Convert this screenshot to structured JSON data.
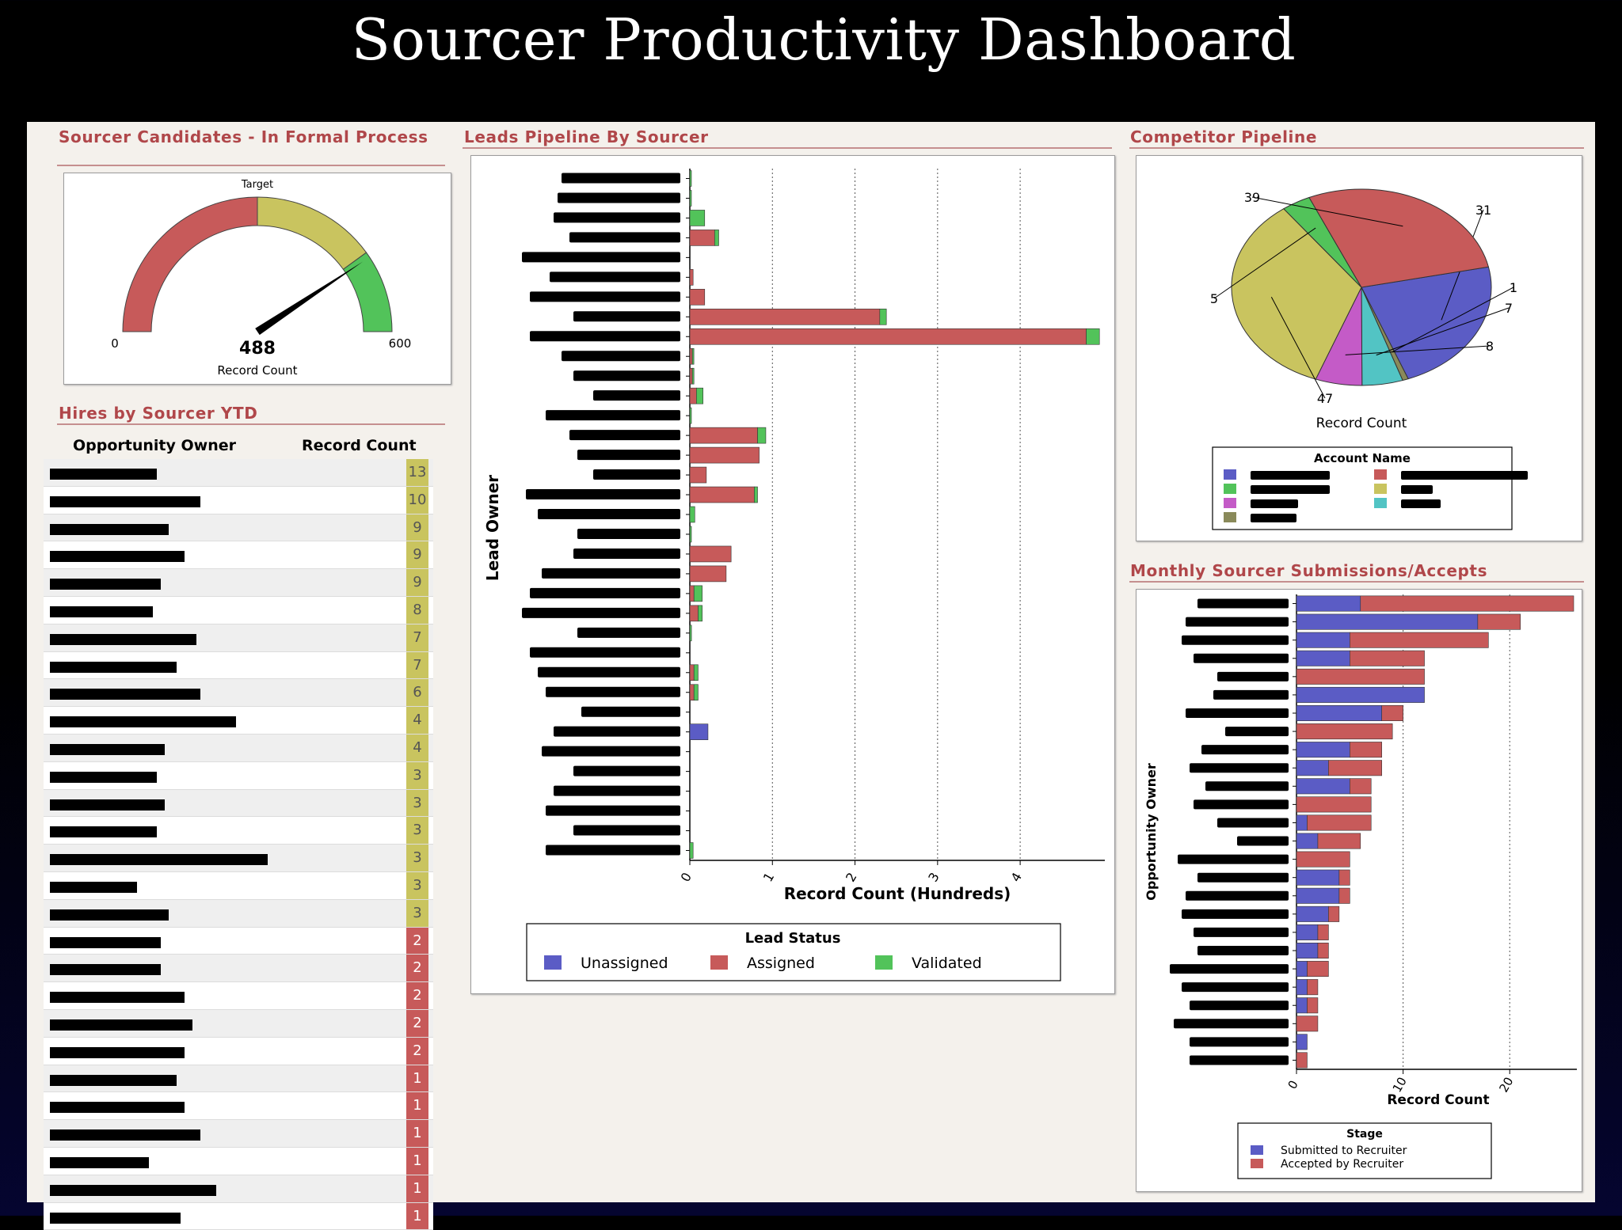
{
  "page": {
    "title": "Sourcer Productivity Dashboard"
  },
  "colors": {
    "unassigned": "#5b5cc5",
    "assigned": "#c75a5a",
    "validated": "#52c35a",
    "gauge_red": "#c75a5a",
    "gauge_yellow": "#c9c45f",
    "gauge_green": "#52c35a",
    "section_title": "#b0474a"
  },
  "gauge": {
    "section_title": "Sourcer Candidates - In Formal Process",
    "label_top": "Target",
    "min_label": "0",
    "max_label": "600",
    "value_label": "488",
    "axis_label": "Record Count",
    "value": 488,
    "min": 0,
    "max": 600
  },
  "hires": {
    "section_title": "Hires by Sourcer YTD",
    "col_owner": "Opportunity Owner",
    "col_count": "Record Count",
    "counts": [
      "13",
      "10",
      "9",
      "9",
      "9",
      "8",
      "7",
      "7",
      "6",
      "4",
      "4",
      "3",
      "3",
      "3",
      "3",
      "3",
      "3",
      "2",
      "2",
      "2",
      "2",
      "2",
      "1",
      "1",
      "1",
      "1",
      "1",
      "1"
    ]
  },
  "leads": {
    "section_title": "Leads Pipeline By Sourcer",
    "legend_title": "Lead Status"
  },
  "competitor": {
    "section_title": "Competitor Pipeline",
    "legend_title": "Account Name"
  },
  "monthly": {
    "section_title": "Monthly Sourcer Submissions/Accepts",
    "legend_title": "Stage"
  },
  "chart_data": [
    {
      "type": "bar",
      "orientation": "horizontal",
      "stacked": true,
      "title": "Leads Pipeline By Sourcer",
      "xlabel": "Record Count (Hundreds)",
      "ylabel": "Lead Owner",
      "xlim": [
        0,
        5
      ],
      "x_ticks": [
        "0",
        "1",
        "2",
        "3",
        "4"
      ],
      "grid": true,
      "legend_title": "Lead Status",
      "legend_position": "bottom",
      "series": [
        {
          "name": "Unassigned",
          "values": [
            0,
            0,
            0,
            0,
            0,
            0,
            0,
            0,
            0,
            0,
            0,
            0,
            0,
            0,
            0,
            0,
            0,
            0,
            0,
            0,
            0,
            0,
            0,
            0,
            0,
            0,
            0,
            0,
            0.22,
            0,
            0,
            0,
            0,
            0,
            0
          ]
        },
        {
          "name": "Assigned",
          "values": [
            0,
            0,
            0,
            0.3,
            0,
            0.04,
            0.18,
            2.3,
            4.8,
            0.03,
            0.03,
            0.08,
            0,
            0.82,
            0.84,
            0.2,
            0.78,
            0,
            0,
            0.5,
            0.44,
            0.05,
            0.1,
            0,
            0,
            0.05,
            0.05,
            0,
            0,
            0,
            0,
            0,
            0,
            0,
            0
          ]
        },
        {
          "name": "Validated",
          "values": [
            0.01,
            0.01,
            0.18,
            0.05,
            0,
            0,
            0,
            0.08,
            0.16,
            0.01,
            0.02,
            0.08,
            0.01,
            0.1,
            0,
            0,
            0.04,
            0.06,
            0.01,
            0,
            0,
            0.1,
            0.05,
            0.02,
            0,
            0.05,
            0.05,
            0,
            0,
            0,
            0,
            0,
            0,
            0,
            0.04
          ]
        }
      ]
    },
    {
      "type": "pie",
      "title": "Competitor Pipeline",
      "xlabel": "Record Count",
      "legend_title": "Account Name",
      "legend_position": "bottom",
      "values": [
        31,
        1,
        7,
        8,
        47,
        5,
        39
      ],
      "labels": [
        "31",
        "1",
        "7",
        "8",
        "47",
        "5",
        "39"
      ],
      "colors": [
        "#5b5cc5",
        "#8a8a5a",
        "#52c4c4",
        "#c45bc7",
        "#c9c45f",
        "#52c35a",
        "#c75a5a"
      ]
    },
    {
      "type": "bar",
      "orientation": "horizontal",
      "stacked": true,
      "title": "Monthly Sourcer Submissions/Accepts",
      "xlabel": "Record Count",
      "ylabel": "Opportunity Owner",
      "xlim": [
        0,
        26
      ],
      "x_ticks": [
        "0",
        "10",
        "20"
      ],
      "grid": true,
      "legend_title": "Stage",
      "legend_position": "bottom",
      "series": [
        {
          "name": "Submitted to Recruiter",
          "values": [
            6,
            17,
            5,
            5,
            0,
            12,
            8,
            0,
            5,
            3,
            5,
            0,
            1,
            2,
            0,
            4,
            4,
            3,
            2,
            2,
            1,
            1,
            1,
            0,
            1,
            0
          ]
        },
        {
          "name": "Accepted by Recruiter",
          "values": [
            20,
            4,
            13,
            7,
            12,
            0,
            2,
            9,
            3,
            5,
            2,
            7,
            6,
            4,
            5,
            1,
            1,
            1,
            1,
            1,
            2,
            1,
            1,
            2,
            0,
            1
          ]
        }
      ]
    }
  ]
}
